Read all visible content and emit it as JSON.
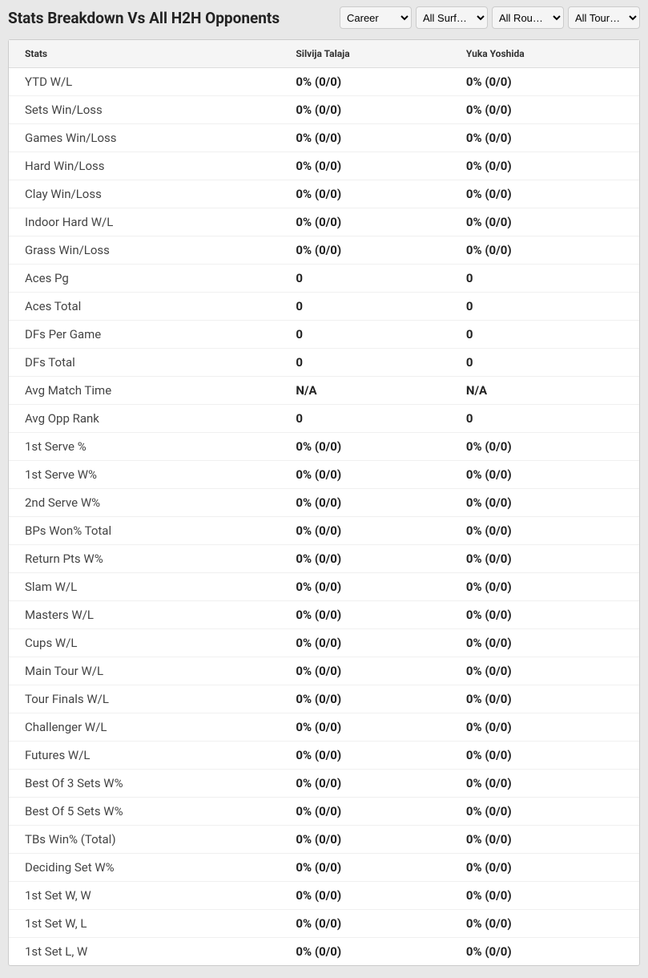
{
  "header": {
    "title": "Stats Breakdown Vs All H2H Opponents"
  },
  "filters": {
    "period": {
      "selected": "Career",
      "options": [
        "Career"
      ]
    },
    "surface": {
      "selected": "All Surf…",
      "options": [
        "All Surf…"
      ]
    },
    "round": {
      "selected": "All Rou…",
      "options": [
        "All Rou…"
      ]
    },
    "tournament": {
      "selected": "All Tour…",
      "options": [
        "All Tour…"
      ]
    }
  },
  "table": {
    "columns": {
      "stats": "Stats",
      "player1": "Silvija Talaja",
      "player2": "Yuka Yoshida"
    },
    "rows": [
      {
        "label": "YTD W/L",
        "p1": "0% (0/0)",
        "p2": "0% (0/0)"
      },
      {
        "label": "Sets Win/Loss",
        "p1": "0% (0/0)",
        "p2": "0% (0/0)"
      },
      {
        "label": "Games Win/Loss",
        "p1": "0% (0/0)",
        "p2": "0% (0/0)"
      },
      {
        "label": "Hard Win/Loss",
        "p1": "0% (0/0)",
        "p2": "0% (0/0)"
      },
      {
        "label": "Clay Win/Loss",
        "p1": "0% (0/0)",
        "p2": "0% (0/0)"
      },
      {
        "label": "Indoor Hard W/L",
        "p1": "0% (0/0)",
        "p2": "0% (0/0)"
      },
      {
        "label": "Grass Win/Loss",
        "p1": "0% (0/0)",
        "p2": "0% (0/0)"
      },
      {
        "label": "Aces Pg",
        "p1": "0",
        "p2": "0"
      },
      {
        "label": "Aces Total",
        "p1": "0",
        "p2": "0"
      },
      {
        "label": "DFs Per Game",
        "p1": "0",
        "p2": "0"
      },
      {
        "label": "DFs Total",
        "p1": "0",
        "p2": "0"
      },
      {
        "label": "Avg Match Time",
        "p1": "N/A",
        "p2": "N/A"
      },
      {
        "label": "Avg Opp Rank",
        "p1": "0",
        "p2": "0"
      },
      {
        "label": "1st Serve %",
        "p1": "0% (0/0)",
        "p2": "0% (0/0)"
      },
      {
        "label": "1st Serve W%",
        "p1": "0% (0/0)",
        "p2": "0% (0/0)"
      },
      {
        "label": "2nd Serve W%",
        "p1": "0% (0/0)",
        "p2": "0% (0/0)"
      },
      {
        "label": "BPs Won% Total",
        "p1": "0% (0/0)",
        "p2": "0% (0/0)"
      },
      {
        "label": "Return Pts W%",
        "p1": "0% (0/0)",
        "p2": "0% (0/0)"
      },
      {
        "label": "Slam W/L",
        "p1": "0% (0/0)",
        "p2": "0% (0/0)"
      },
      {
        "label": "Masters W/L",
        "p1": "0% (0/0)",
        "p2": "0% (0/0)"
      },
      {
        "label": "Cups W/L",
        "p1": "0% (0/0)",
        "p2": "0% (0/0)"
      },
      {
        "label": "Main Tour W/L",
        "p1": "0% (0/0)",
        "p2": "0% (0/0)"
      },
      {
        "label": "Tour Finals W/L",
        "p1": "0% (0/0)",
        "p2": "0% (0/0)"
      },
      {
        "label": "Challenger W/L",
        "p1": "0% (0/0)",
        "p2": "0% (0/0)"
      },
      {
        "label": "Futures W/L",
        "p1": "0% (0/0)",
        "p2": "0% (0/0)"
      },
      {
        "label": "Best Of 3 Sets W%",
        "p1": "0% (0/0)",
        "p2": "0% (0/0)"
      },
      {
        "label": "Best Of 5 Sets W%",
        "p1": "0% (0/0)",
        "p2": "0% (0/0)"
      },
      {
        "label": "TBs Win% (Total)",
        "p1": "0% (0/0)",
        "p2": "0% (0/0)"
      },
      {
        "label": "Deciding Set W%",
        "p1": "0% (0/0)",
        "p2": "0% (0/0)"
      },
      {
        "label": "1st Set W, W",
        "p1": "0% (0/0)",
        "p2": "0% (0/0)"
      },
      {
        "label": "1st Set W, L",
        "p1": "0% (0/0)",
        "p2": "0% (0/0)"
      },
      {
        "label": "1st Set L, W",
        "p1": "0% (0/0)",
        "p2": "0% (0/0)"
      }
    ]
  }
}
